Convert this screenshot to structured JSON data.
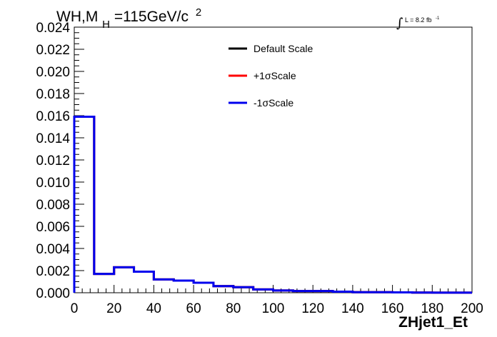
{
  "chart_data": {
    "type": "line",
    "title": {
      "main": "WH,M",
      "subscript": "H",
      "rest": "=115GeV/c",
      "superscript": "2"
    },
    "luminosity": {
      "integral": "∫",
      "text": "L = 8.2 fb",
      "superscript": "-1"
    },
    "xlabel": "ZHjet1_Et",
    "ylabel": "",
    "xlim": [
      0,
      200
    ],
    "ylim": [
      0,
      0.024
    ],
    "x_ticks": [
      0,
      20,
      40,
      60,
      80,
      100,
      120,
      140,
      160,
      180,
      200
    ],
    "x_tick_labels": [
      "0",
      "20",
      "40",
      "60",
      "80",
      "100",
      "120",
      "140",
      "160",
      "180",
      "200"
    ],
    "y_ticks": [
      0,
      0.002,
      0.004,
      0.006,
      0.008,
      0.01,
      0.012,
      0.014,
      0.016,
      0.018,
      0.02,
      0.022,
      0.024
    ],
    "y_tick_labels": [
      "0.000",
      "0.002",
      "0.004",
      "0.006",
      "0.008",
      "0.010",
      "0.012",
      "0.014",
      "0.016",
      "0.018",
      "0.020",
      "0.022",
      "0.024"
    ],
    "bin_edges": [
      0,
      10,
      20,
      30,
      40,
      50,
      60,
      70,
      80,
      90,
      100,
      110,
      120,
      130,
      140,
      150,
      160,
      170,
      180,
      190,
      200
    ],
    "legend_position": "top-center",
    "grid": false,
    "series": [
      {
        "name": "Default Scale",
        "color": "#000000",
        "values": [
          0.0159,
          0.0017,
          0.0023,
          0.0019,
          0.0012,
          0.0011,
          0.0009,
          0.0006,
          0.0005,
          0.0003,
          0.0002,
          0.00015,
          0.00015,
          0.0001,
          5e-05,
          5e-05,
          3e-05,
          2e-05,
          1e-05,
          1e-05
        ]
      },
      {
        "name": "+1σScale",
        "color": "#ff0000",
        "values": [
          0.0159,
          0.0017,
          0.0023,
          0.0019,
          0.0012,
          0.0011,
          0.0009,
          0.0006,
          0.0005,
          0.0003,
          0.0002,
          0.00015,
          0.00015,
          0.0001,
          5e-05,
          5e-05,
          3e-05,
          2e-05,
          1e-05,
          1e-05
        ]
      },
      {
        "name": "-1σScale",
        "color": "#0000ee",
        "values": [
          0.0159,
          0.0017,
          0.0023,
          0.0019,
          0.0012,
          0.0011,
          0.0009,
          0.0006,
          0.0005,
          0.0003,
          0.0002,
          0.00015,
          0.00015,
          0.0001,
          5e-05,
          5e-05,
          3e-05,
          2e-05,
          1e-05,
          1e-05
        ]
      }
    ]
  }
}
